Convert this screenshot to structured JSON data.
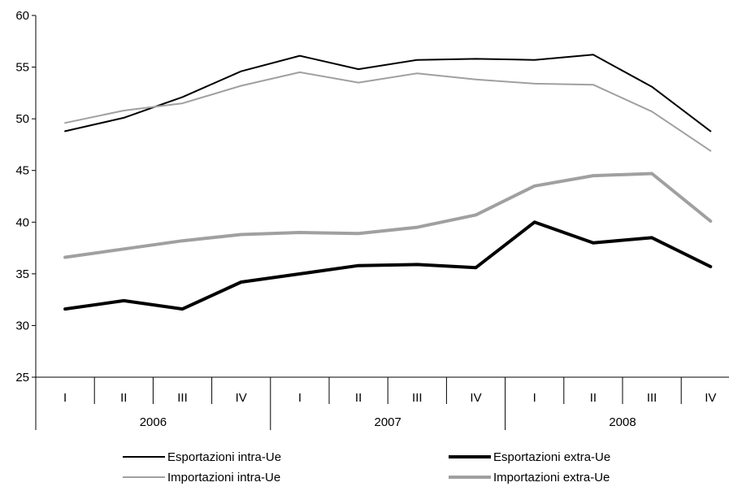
{
  "chart_data": {
    "type": "line",
    "title": "",
    "xlabel": "",
    "ylabel": "",
    "ylim": [
      25,
      60
    ],
    "yticks": [
      25,
      30,
      35,
      40,
      45,
      50,
      55,
      60
    ],
    "categories": [
      "I",
      "II",
      "III",
      "IV",
      "I",
      "II",
      "III",
      "IV",
      "I",
      "II",
      "III",
      "IV"
    ],
    "groups": [
      {
        "label": "2006",
        "count": 4
      },
      {
        "label": "2007",
        "count": 4
      },
      {
        "label": "2008",
        "count": 4
      }
    ],
    "grid": false,
    "legend_position": "bottom",
    "series": [
      {
        "name": "Esportazioni intra-Ue",
        "color": "#000000",
        "weight": "thin",
        "values": [
          48.8,
          50.1,
          52.1,
          54.6,
          56.1,
          54.8,
          55.7,
          55.8,
          55.7,
          56.2,
          53.1,
          48.8
        ]
      },
      {
        "name": "Esportazioni extra-Ue",
        "color": "#000000",
        "weight": "thick",
        "values": [
          31.6,
          32.4,
          31.6,
          34.2,
          35.0,
          35.8,
          35.9,
          35.6,
          40.0,
          38.0,
          38.5,
          35.7
        ]
      },
      {
        "name": "Importazioni intra-Ue",
        "color": "#a0a0a0",
        "weight": "thin",
        "values": [
          49.6,
          50.8,
          51.5,
          53.2,
          54.5,
          53.5,
          54.4,
          53.8,
          53.4,
          53.3,
          50.7,
          46.9
        ]
      },
      {
        "name": "Importazioni extra-Ue",
        "color": "#a0a0a0",
        "weight": "thick",
        "values": [
          36.6,
          37.4,
          38.2,
          38.8,
          39.0,
          38.9,
          39.5,
          40.7,
          43.5,
          44.5,
          44.7,
          40.1
        ]
      }
    ]
  }
}
